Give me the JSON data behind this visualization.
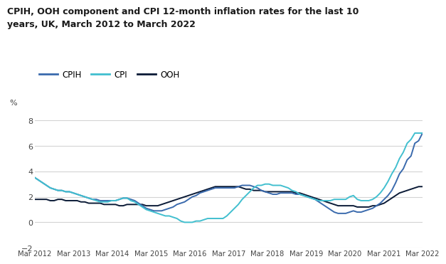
{
  "title_line1": "CPIH, OOH component and CPI 12-month inflation rates for the last 10",
  "title_line2": "years, UK, March 2012 to March 2022",
  "ylabel": "%",
  "ylim": [
    -2,
    9
  ],
  "yticks": [
    -2,
    0,
    2,
    4,
    6,
    8
  ],
  "xtick_labels": [
    "Mar 2012",
    "Mar 2013",
    "Mar 2014",
    "Mar 2015",
    "Mar 2016",
    "Mar 2017",
    "Mar 2018",
    "Mar 2019",
    "Mar 2020",
    "Mar 2021",
    "Mar 2022"
  ],
  "colors": {
    "CPIH": "#3a6aad",
    "CPI": "#41bfcf",
    "OOH": "#0a1a36"
  },
  "background": "#ffffff",
  "grid_color": "#d4d4d4",
  "cpih": [
    3.5,
    3.3,
    3.1,
    2.9,
    2.7,
    2.6,
    2.5,
    2.5,
    2.4,
    2.4,
    2.3,
    2.2,
    2.1,
    2.0,
    1.9,
    1.8,
    1.8,
    1.7,
    1.7,
    1.7,
    1.7,
    1.7,
    1.8,
    1.9,
    1.9,
    1.8,
    1.7,
    1.5,
    1.3,
    1.1,
    1.0,
    0.9,
    0.9,
    0.9,
    1.0,
    1.1,
    1.2,
    1.4,
    1.5,
    1.6,
    1.8,
    2.0,
    2.1,
    2.3,
    2.4,
    2.5,
    2.6,
    2.7,
    2.7,
    2.7,
    2.7,
    2.7,
    2.7,
    2.8,
    2.9,
    2.9,
    2.9,
    2.8,
    2.7,
    2.5,
    2.4,
    2.3,
    2.2,
    2.2,
    2.3,
    2.3,
    2.3,
    2.3,
    2.2,
    2.2,
    2.1,
    2.0,
    1.9,
    1.8,
    1.6,
    1.4,
    1.2,
    1.0,
    0.8,
    0.7,
    0.7,
    0.7,
    0.8,
    0.9,
    0.8,
    0.8,
    0.9,
    1.0,
    1.1,
    1.3,
    1.5,
    1.8,
    2.1,
    2.5,
    3.1,
    3.8,
    4.2,
    4.9,
    5.2,
    6.2,
    6.4,
    7.0
  ],
  "cpi": [
    3.5,
    3.3,
    3.1,
    2.9,
    2.7,
    2.6,
    2.5,
    2.5,
    2.4,
    2.4,
    2.3,
    2.2,
    2.1,
    2.0,
    1.9,
    1.8,
    1.7,
    1.6,
    1.6,
    1.6,
    1.7,
    1.7,
    1.8,
    1.9,
    1.9,
    1.7,
    1.6,
    1.4,
    1.2,
    1.0,
    0.9,
    0.8,
    0.7,
    0.6,
    0.5,
    0.5,
    0.4,
    0.3,
    0.1,
    0.0,
    0.0,
    0.0,
    0.1,
    0.1,
    0.2,
    0.3,
    0.3,
    0.3,
    0.3,
    0.3,
    0.5,
    0.8,
    1.1,
    1.4,
    1.8,
    2.1,
    2.4,
    2.7,
    2.9,
    2.9,
    3.0,
    3.0,
    2.9,
    2.9,
    2.9,
    2.8,
    2.7,
    2.5,
    2.4,
    2.2,
    2.1,
    2.0,
    1.9,
    1.8,
    1.7,
    1.7,
    1.7,
    1.7,
    1.8,
    1.8,
    1.8,
    1.8,
    2.0,
    2.1,
    1.8,
    1.7,
    1.7,
    1.7,
    1.8,
    2.0,
    2.3,
    2.7,
    3.2,
    3.8,
    4.3,
    5.0,
    5.5,
    6.2,
    6.5,
    7.0,
    7.0,
    7.0
  ],
  "ooh": [
    1.8,
    1.8,
    1.8,
    1.8,
    1.7,
    1.7,
    1.8,
    1.8,
    1.7,
    1.7,
    1.7,
    1.7,
    1.6,
    1.6,
    1.5,
    1.5,
    1.5,
    1.5,
    1.4,
    1.4,
    1.4,
    1.4,
    1.3,
    1.3,
    1.4,
    1.4,
    1.4,
    1.4,
    1.4,
    1.3,
    1.3,
    1.3,
    1.3,
    1.4,
    1.5,
    1.6,
    1.7,
    1.8,
    1.9,
    2.0,
    2.1,
    2.2,
    2.3,
    2.4,
    2.5,
    2.6,
    2.7,
    2.8,
    2.8,
    2.8,
    2.8,
    2.8,
    2.8,
    2.8,
    2.7,
    2.6,
    2.6,
    2.5,
    2.5,
    2.5,
    2.4,
    2.4,
    2.4,
    2.4,
    2.4,
    2.4,
    2.4,
    2.4,
    2.3,
    2.3,
    2.2,
    2.1,
    2.0,
    1.9,
    1.8,
    1.7,
    1.6,
    1.5,
    1.4,
    1.3,
    1.3,
    1.3,
    1.3,
    1.3,
    1.2,
    1.2,
    1.2,
    1.2,
    1.3,
    1.3,
    1.4,
    1.5,
    1.7,
    1.9,
    2.1,
    2.3,
    2.4,
    2.5,
    2.6,
    2.7,
    2.8,
    2.8
  ]
}
